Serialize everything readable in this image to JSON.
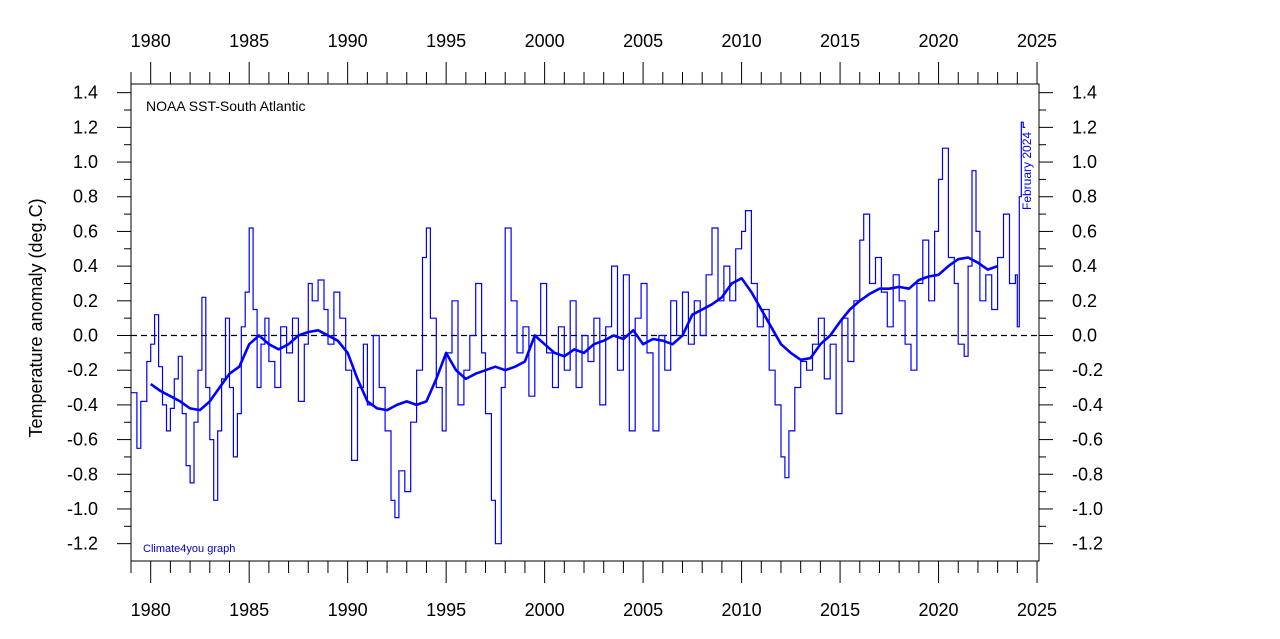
{
  "chart_data": {
    "type": "line",
    "title": "NOAA SST-South Atlantic",
    "ylabel": "Temperature anomaly (deg.C)",
    "xlabel": "",
    "credit": "Climate4you graph",
    "annotation": "February 2024",
    "xlim": [
      1979,
      2025.1
    ],
    "ylim": [
      -1.3,
      1.45
    ],
    "x_ticks": [
      1980,
      1985,
      1990,
      1995,
      2000,
      2005,
      2010,
      2015,
      2020,
      2025
    ],
    "y_ticks": [
      -1.2,
      -1.0,
      -0.8,
      -0.6,
      -0.4,
      -0.2,
      0.0,
      0.2,
      0.4,
      0.6,
      0.8,
      1.0,
      1.2,
      1.4
    ],
    "y_tick_labels": [
      "-1.2",
      "-1.0",
      "-0.8",
      "-0.6",
      "-0.4",
      "-0.2",
      "0.0",
      "0.2",
      "0.4",
      "0.6",
      "0.8",
      "1.0",
      "1.2",
      "1.4"
    ],
    "reference_line": 0.0,
    "grid": false,
    "colors": {
      "series": "#0000ff",
      "reference": "#000000"
    },
    "series": [
      {
        "role": "monthly",
        "style": "step",
        "points": [
          [
            1979.0,
            -0.33
          ],
          [
            1979.3,
            -0.65
          ],
          [
            1979.5,
            -0.38
          ],
          [
            1979.8,
            -0.15
          ],
          [
            1980.0,
            -0.05
          ],
          [
            1980.2,
            0.12
          ],
          [
            1980.4,
            -0.18
          ],
          [
            1980.6,
            -0.4
          ],
          [
            1980.8,
            -0.55
          ],
          [
            1981.0,
            -0.42
          ],
          [
            1981.2,
            -0.25
          ],
          [
            1981.4,
            -0.12
          ],
          [
            1981.6,
            -0.45
          ],
          [
            1981.8,
            -0.75
          ],
          [
            1982.0,
            -0.85
          ],
          [
            1982.2,
            -0.5
          ],
          [
            1982.4,
            -0.2
          ],
          [
            1982.6,
            0.22
          ],
          [
            1982.8,
            -0.3
          ],
          [
            1983.0,
            -0.6
          ],
          [
            1983.2,
            -0.95
          ],
          [
            1983.4,
            -0.55
          ],
          [
            1983.6,
            -0.25
          ],
          [
            1983.8,
            0.1
          ],
          [
            1984.0,
            -0.3
          ],
          [
            1984.2,
            -0.7
          ],
          [
            1984.4,
            -0.45
          ],
          [
            1984.6,
            0.05
          ],
          [
            1984.8,
            0.25
          ],
          [
            1985.0,
            0.62
          ],
          [
            1985.2,
            0.15
          ],
          [
            1985.4,
            -0.3
          ],
          [
            1985.6,
            -0.05
          ],
          [
            1985.8,
            0.1
          ],
          [
            1986.0,
            -0.15
          ],
          [
            1986.3,
            -0.3
          ],
          [
            1986.6,
            0.05
          ],
          [
            1986.9,
            -0.1
          ],
          [
            1987.2,
            0.1
          ],
          [
            1987.5,
            -0.38
          ],
          [
            1987.8,
            -0.05
          ],
          [
            1988.0,
            0.3
          ],
          [
            1988.2,
            0.2
          ],
          [
            1988.5,
            0.32
          ],
          [
            1988.8,
            0.15
          ],
          [
            1989.0,
            -0.05
          ],
          [
            1989.3,
            0.25
          ],
          [
            1989.6,
            0.1
          ],
          [
            1989.9,
            -0.2
          ],
          [
            1990.2,
            -0.72
          ],
          [
            1990.5,
            -0.3
          ],
          [
            1990.8,
            -0.05
          ],
          [
            1991.0,
            -0.4
          ],
          [
            1991.3,
            0.0
          ],
          [
            1991.6,
            -0.3
          ],
          [
            1991.9,
            -0.55
          ],
          [
            1992.2,
            -0.95
          ],
          [
            1992.4,
            -1.05
          ],
          [
            1992.6,
            -0.78
          ],
          [
            1992.9,
            -0.9
          ],
          [
            1993.2,
            -0.5
          ],
          [
            1993.5,
            -0.2
          ],
          [
            1993.8,
            0.45
          ],
          [
            1994.0,
            0.62
          ],
          [
            1994.2,
            0.1
          ],
          [
            1994.5,
            -0.3
          ],
          [
            1994.8,
            -0.55
          ],
          [
            1995.0,
            -0.1
          ],
          [
            1995.3,
            0.2
          ],
          [
            1995.6,
            -0.4
          ],
          [
            1995.9,
            -0.2
          ],
          [
            1996.2,
            0.0
          ],
          [
            1996.5,
            0.3
          ],
          [
            1996.8,
            -0.1
          ],
          [
            1997.0,
            -0.45
          ],
          [
            1997.3,
            -0.95
          ],
          [
            1997.5,
            -1.2
          ],
          [
            1997.8,
            -0.3
          ],
          [
            1998.0,
            0.62
          ],
          [
            1998.3,
            0.2
          ],
          [
            1998.6,
            -0.1
          ],
          [
            1998.9,
            0.05
          ],
          [
            1999.2,
            -0.35
          ],
          [
            1999.5,
            0.0
          ],
          [
            1999.8,
            0.3
          ],
          [
            2000.1,
            -0.1
          ],
          [
            2000.4,
            -0.3
          ],
          [
            2000.7,
            0.05
          ],
          [
            2001.0,
            -0.2
          ],
          [
            2001.3,
            0.2
          ],
          [
            2001.6,
            -0.3
          ],
          [
            2001.9,
            0.0
          ],
          [
            2002.2,
            -0.15
          ],
          [
            2002.5,
            0.1
          ],
          [
            2002.8,
            -0.4
          ],
          [
            2003.1,
            0.05
          ],
          [
            2003.4,
            0.4
          ],
          [
            2003.7,
            -0.2
          ],
          [
            2004.0,
            0.35
          ],
          [
            2004.3,
            -0.55
          ],
          [
            2004.6,
            0.1
          ],
          [
            2004.9,
            0.3
          ],
          [
            2005.2,
            -0.1
          ],
          [
            2005.5,
            -0.55
          ],
          [
            2005.8,
            0.0
          ],
          [
            2006.1,
            -0.2
          ],
          [
            2006.4,
            0.2
          ],
          [
            2006.7,
            0.0
          ],
          [
            2007.0,
            0.25
          ],
          [
            2007.3,
            -0.05
          ],
          [
            2007.6,
            0.2
          ],
          [
            2007.9,
            0.0
          ],
          [
            2008.2,
            0.35
          ],
          [
            2008.5,
            0.62
          ],
          [
            2008.8,
            0.2
          ],
          [
            2009.1,
            0.4
          ],
          [
            2009.4,
            0.2
          ],
          [
            2009.7,
            0.5
          ],
          [
            2010.0,
            0.6
          ],
          [
            2010.2,
            0.72
          ],
          [
            2010.5,
            0.3
          ],
          [
            2010.8,
            0.05
          ],
          [
            2011.1,
            0.15
          ],
          [
            2011.4,
            -0.2
          ],
          [
            2011.7,
            -0.4
          ],
          [
            2012.0,
            -0.7
          ],
          [
            2012.2,
            -0.82
          ],
          [
            2012.4,
            -0.55
          ],
          [
            2012.7,
            -0.3
          ],
          [
            2013.0,
            -0.15
          ],
          [
            2013.3,
            -0.2
          ],
          [
            2013.6,
            -0.05
          ],
          [
            2013.9,
            0.1
          ],
          [
            2014.2,
            -0.25
          ],
          [
            2014.5,
            -0.05
          ],
          [
            2014.8,
            -0.45
          ],
          [
            2015.1,
            0.1
          ],
          [
            2015.4,
            -0.15
          ],
          [
            2015.7,
            0.2
          ],
          [
            2016.0,
            0.55
          ],
          [
            2016.2,
            0.7
          ],
          [
            2016.5,
            0.3
          ],
          [
            2016.8,
            0.45
          ],
          [
            2017.1,
            0.25
          ],
          [
            2017.4,
            0.05
          ],
          [
            2017.7,
            0.35
          ],
          [
            2018.0,
            0.2
          ],
          [
            2018.3,
            -0.05
          ],
          [
            2018.6,
            -0.2
          ],
          [
            2018.9,
            0.3
          ],
          [
            2019.2,
            0.55
          ],
          [
            2019.5,
            0.2
          ],
          [
            2019.8,
            0.6
          ],
          [
            2020.0,
            0.9
          ],
          [
            2020.2,
            1.08
          ],
          [
            2020.5,
            0.45
          ],
          [
            2020.8,
            0.3
          ],
          [
            2021.0,
            -0.05
          ],
          [
            2021.3,
            -0.12
          ],
          [
            2021.5,
            0.4
          ],
          [
            2021.7,
            0.95
          ],
          [
            2021.9,
            0.6
          ],
          [
            2022.1,
            0.2
          ],
          [
            2022.4,
            0.35
          ],
          [
            2022.7,
            0.15
          ],
          [
            2023.0,
            0.45
          ],
          [
            2023.3,
            0.7
          ],
          [
            2023.6,
            0.3
          ],
          [
            2023.9,
            0.35
          ],
          [
            2024.0,
            0.05
          ],
          [
            2024.1,
            0.8
          ],
          [
            2024.2,
            1.23
          ],
          [
            2024.3,
            1.2
          ]
        ]
      },
      {
        "role": "running-mean",
        "style": "line",
        "points": [
          [
            1980.0,
            -0.28
          ],
          [
            1980.5,
            -0.32
          ],
          [
            1981.0,
            -0.35
          ],
          [
            1981.5,
            -0.38
          ],
          [
            1982.0,
            -0.42
          ],
          [
            1982.5,
            -0.43
          ],
          [
            1983.0,
            -0.38
          ],
          [
            1983.5,
            -0.3
          ],
          [
            1984.0,
            -0.22
          ],
          [
            1984.5,
            -0.18
          ],
          [
            1985.0,
            -0.05
          ],
          [
            1985.5,
            0.0
          ],
          [
            1986.0,
            -0.05
          ],
          [
            1986.5,
            -0.08
          ],
          [
            1987.0,
            -0.05
          ],
          [
            1987.5,
            0.0
          ],
          [
            1988.0,
            0.02
          ],
          [
            1988.5,
            0.03
          ],
          [
            1989.0,
            0.0
          ],
          [
            1989.5,
            -0.03
          ],
          [
            1990.0,
            -0.1
          ],
          [
            1990.5,
            -0.25
          ],
          [
            1991.0,
            -0.38
          ],
          [
            1991.5,
            -0.42
          ],
          [
            1992.0,
            -0.43
          ],
          [
            1992.5,
            -0.4
          ],
          [
            1993.0,
            -0.38
          ],
          [
            1993.5,
            -0.4
          ],
          [
            1994.0,
            -0.38
          ],
          [
            1994.5,
            -0.25
          ],
          [
            1995.0,
            -0.1
          ],
          [
            1995.5,
            -0.2
          ],
          [
            1996.0,
            -0.25
          ],
          [
            1996.5,
            -0.22
          ],
          [
            1997.0,
            -0.2
          ],
          [
            1997.5,
            -0.18
          ],
          [
            1998.0,
            -0.2
          ],
          [
            1998.5,
            -0.18
          ],
          [
            1999.0,
            -0.15
          ],
          [
            1999.5,
            0.0
          ],
          [
            2000.0,
            -0.05
          ],
          [
            2000.5,
            -0.1
          ],
          [
            2001.0,
            -0.12
          ],
          [
            2001.5,
            -0.08
          ],
          [
            2002.0,
            -0.1
          ],
          [
            2002.5,
            -0.05
          ],
          [
            2003.0,
            -0.03
          ],
          [
            2003.5,
            0.0
          ],
          [
            2004.0,
            -0.02
          ],
          [
            2004.5,
            0.03
          ],
          [
            2005.0,
            -0.05
          ],
          [
            2005.5,
            -0.02
          ],
          [
            2006.0,
            -0.03
          ],
          [
            2006.5,
            -0.05
          ],
          [
            2007.0,
            0.0
          ],
          [
            2007.5,
            0.12
          ],
          [
            2008.0,
            0.15
          ],
          [
            2008.5,
            0.18
          ],
          [
            2009.0,
            0.22
          ],
          [
            2009.5,
            0.3
          ],
          [
            2010.0,
            0.33
          ],
          [
            2010.5,
            0.25
          ],
          [
            2011.0,
            0.15
          ],
          [
            2011.5,
            0.05
          ],
          [
            2012.0,
            -0.05
          ],
          [
            2012.5,
            -0.1
          ],
          [
            2013.0,
            -0.14
          ],
          [
            2013.5,
            -0.13
          ],
          [
            2014.0,
            -0.05
          ],
          [
            2014.5,
            0.0
          ],
          [
            2015.0,
            0.08
          ],
          [
            2015.5,
            0.15
          ],
          [
            2016.0,
            0.2
          ],
          [
            2016.5,
            0.24
          ],
          [
            2017.0,
            0.27
          ],
          [
            2017.5,
            0.27
          ],
          [
            2018.0,
            0.28
          ],
          [
            2018.5,
            0.27
          ],
          [
            2019.0,
            0.32
          ],
          [
            2019.5,
            0.34
          ],
          [
            2020.0,
            0.35
          ],
          [
            2020.5,
            0.4
          ],
          [
            2021.0,
            0.44
          ],
          [
            2021.5,
            0.45
          ],
          [
            2022.0,
            0.42
          ],
          [
            2022.5,
            0.38
          ],
          [
            2023.0,
            0.4
          ]
        ]
      }
    ]
  }
}
